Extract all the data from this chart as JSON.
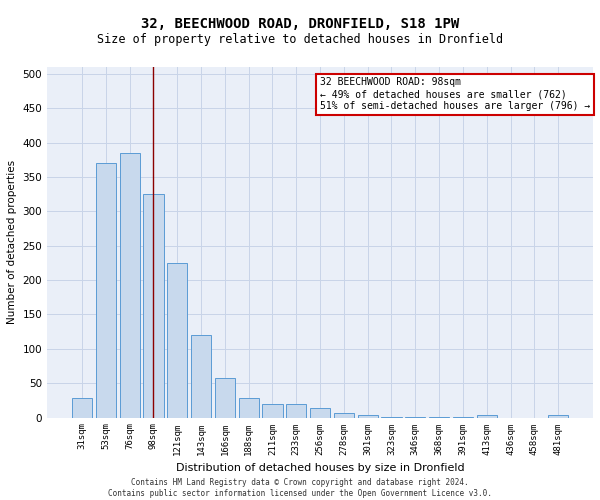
{
  "title": "32, BEECHWOOD ROAD, DRONFIELD, S18 1PW",
  "subtitle": "Size of property relative to detached houses in Dronfield",
  "xlabel": "Distribution of detached houses by size in Dronfield",
  "ylabel": "Number of detached properties",
  "categories": [
    "31sqm",
    "53sqm",
    "76sqm",
    "98sqm",
    "121sqm",
    "143sqm",
    "166sqm",
    "188sqm",
    "211sqm",
    "233sqm",
    "256sqm",
    "278sqm",
    "301sqm",
    "323sqm",
    "346sqm",
    "368sqm",
    "391sqm",
    "413sqm",
    "436sqm",
    "458sqm",
    "481sqm"
  ],
  "values": [
    28,
    370,
    385,
    325,
    225,
    120,
    58,
    29,
    20,
    20,
    14,
    6,
    4,
    1,
    1,
    1,
    1,
    4,
    0,
    0,
    4
  ],
  "bar_color": "#c8d9ed",
  "bar_edge_color": "#5b9bd5",
  "highlight_index": 3,
  "highlight_line_color": "#8b0000",
  "annotation_text": "32 BEECHWOOD ROAD: 98sqm\n← 49% of detached houses are smaller (762)\n51% of semi-detached houses are larger (796) →",
  "annotation_box_color": "#ffffff",
  "annotation_box_edge_color": "#cc0000",
  "ylim": [
    0,
    510
  ],
  "yticks": [
    0,
    50,
    100,
    150,
    200,
    250,
    300,
    350,
    400,
    450,
    500
  ],
  "footer_line1": "Contains HM Land Registry data © Crown copyright and database right 2024.",
  "footer_line2": "Contains public sector information licensed under the Open Government Licence v3.0.",
  "title_fontsize": 10,
  "subtitle_fontsize": 8.5,
  "bar_width": 0.85,
  "background_color": "#ffffff",
  "grid_color": "#c8d4e8",
  "ax_bg_color": "#eaeff8"
}
